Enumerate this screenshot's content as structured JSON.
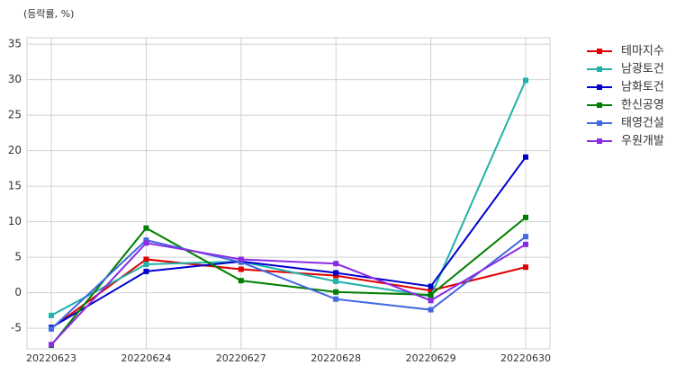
{
  "chart_data": {
    "type": "line",
    "annotation": "(등락률, %)",
    "categories": [
      "20220623",
      "20220624",
      "20220627",
      "20220628",
      "20220629",
      "20220630"
    ],
    "series": [
      {
        "name": "테마지수",
        "color": "#e00000",
        "values": [
          -5.0,
          4.7,
          3.3,
          2.4,
          0.3,
          3.6
        ]
      },
      {
        "name": "남광토건",
        "color": "#20b2aa",
        "values": [
          -3.2,
          4.0,
          4.4,
          1.6,
          -0.5,
          29.9
        ]
      },
      {
        "name": "남화토건",
        "color": "#0000cd",
        "values": [
          -4.9,
          3.0,
          4.4,
          2.8,
          0.9,
          19.1
        ]
      },
      {
        "name": "한신공영",
        "color": "#007f00",
        "values": [
          -7.4,
          9.1,
          1.7,
          0.1,
          -0.3,
          10.6
        ]
      },
      {
        "name": "태영건설",
        "color": "#4169e1",
        "values": [
          -5.1,
          7.4,
          4.3,
          -0.9,
          -2.4,
          7.9
        ]
      },
      {
        "name": "우원개발",
        "color": "#8a2be2",
        "values": [
          -7.3,
          7.0,
          4.7,
          4.1,
          -1.1,
          6.8
        ]
      }
    ],
    "ylim": [
      -7.9,
      35.9
    ],
    "yticks": [
      -5,
      0,
      5,
      10,
      15,
      20,
      25,
      30,
      35
    ],
    "grid": true,
    "legend": "outside-right"
  }
}
